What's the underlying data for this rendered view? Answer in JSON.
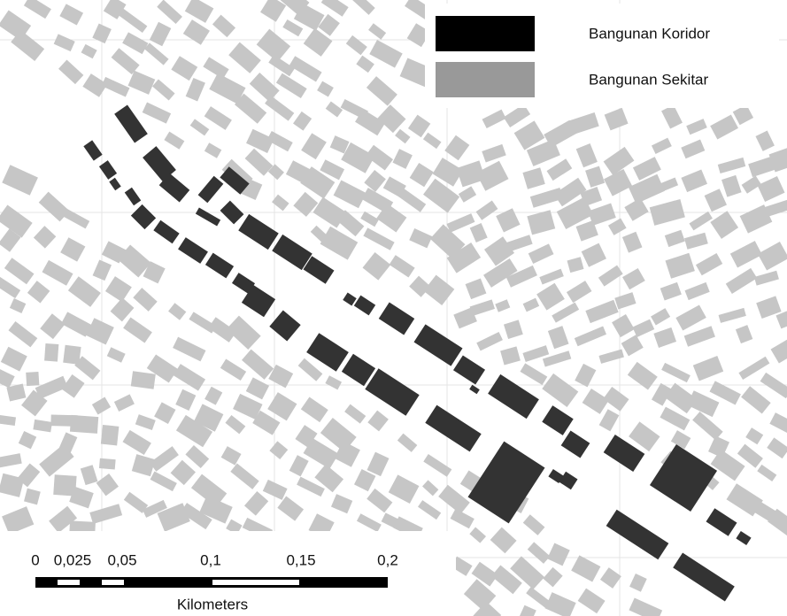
{
  "legend": {
    "items": [
      {
        "label": "Bangunan Koridor",
        "color": "#000000"
      },
      {
        "label": "Bangunan Sekitar",
        "color": "#999999"
      }
    ]
  },
  "scale_bar": {
    "labels": [
      "0",
      "0,025",
      "0,05",
      "0,1",
      "0,15",
      "0,2"
    ],
    "unit": "Kilometers"
  }
}
